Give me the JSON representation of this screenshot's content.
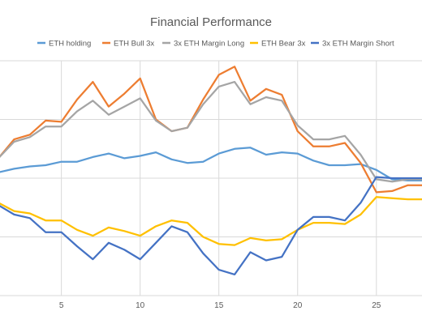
{
  "chart_data": {
    "type": "line",
    "title": "Financial Performance",
    "xlabel": "",
    "ylabel": "",
    "x": [
      1,
      2,
      3,
      4,
      5,
      6,
      7,
      8,
      9,
      10,
      11,
      12,
      13,
      14,
      15,
      16,
      17,
      18,
      19,
      20,
      21,
      22,
      23,
      24,
      25,
      26,
      27,
      28
    ],
    "x_ticks": [
      5,
      10,
      15,
      20,
      25
    ],
    "xlim": [
      1,
      28
    ],
    "ylim": [
      -1,
      1
    ],
    "y_gridlines": [
      -1,
      -0.5,
      0,
      0.5,
      1
    ],
    "y_tick_labels_visible": false,
    "grid": true,
    "legend_position": "top",
    "series": [
      {
        "name": "ETH holding",
        "color": "#5B9BD5",
        "values": [
          0.05,
          0.08,
          0.1,
          0.11,
          0.14,
          0.14,
          0.18,
          0.21,
          0.17,
          0.19,
          0.22,
          0.16,
          0.13,
          0.14,
          0.21,
          0.25,
          0.26,
          0.2,
          0.22,
          0.21,
          0.15,
          0.11,
          0.11,
          0.12,
          0.07,
          -0.01,
          -0.02,
          -0.02
        ]
      },
      {
        "name": "ETH Bull 3x",
        "color": "#ED7D31",
        "values": [
          0.17,
          0.33,
          0.37,
          0.49,
          0.48,
          0.67,
          0.82,
          0.61,
          0.72,
          0.85,
          0.5,
          0.4,
          0.43,
          0.67,
          0.88,
          0.95,
          0.66,
          0.76,
          0.71,
          0.4,
          0.27,
          0.27,
          0.3,
          0.13,
          -0.12,
          -0.11,
          -0.06,
          -0.06
        ]
      },
      {
        "name": "3x ETH Margin Long",
        "color": "#A5A5A5",
        "values": [
          0.17,
          0.31,
          0.35,
          0.44,
          0.44,
          0.57,
          0.66,
          0.54,
          0.61,
          0.68,
          0.49,
          0.4,
          0.43,
          0.63,
          0.78,
          0.82,
          0.63,
          0.69,
          0.66,
          0.45,
          0.33,
          0.33,
          0.36,
          0.2,
          -0.01,
          -0.03,
          -0.01,
          -0.01
        ]
      },
      {
        "name": "ETH Bear 3x",
        "color": "#FFC000",
        "values": [
          -0.21,
          -0.28,
          -0.3,
          -0.36,
          -0.36,
          -0.44,
          -0.49,
          -0.42,
          -0.45,
          -0.49,
          -0.41,
          -0.36,
          -0.38,
          -0.5,
          -0.56,
          -0.57,
          -0.51,
          -0.53,
          -0.52,
          -0.44,
          -0.38,
          -0.38,
          -0.39,
          -0.31,
          -0.16,
          -0.17,
          -0.18,
          -0.18
        ]
      },
      {
        "name": "3x ETH Margin Short",
        "color": "#4472C4",
        "values": [
          -0.23,
          -0.31,
          -0.34,
          -0.46,
          -0.46,
          -0.58,
          -0.69,
          -0.55,
          -0.61,
          -0.69,
          -0.55,
          -0.41,
          -0.46,
          -0.64,
          -0.78,
          -0.82,
          -0.63,
          -0.7,
          -0.67,
          -0.44,
          -0.33,
          -0.33,
          -0.36,
          -0.21,
          0.01,
          0.0,
          0.0,
          0.0
        ]
      }
    ]
  }
}
